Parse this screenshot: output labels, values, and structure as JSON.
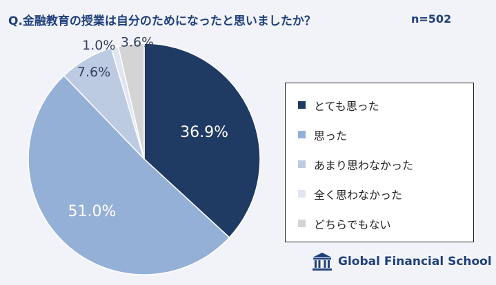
{
  "title": "Q.金融教育の授業は自分のためになったと思いましたか？",
  "sample_size": "n=502",
  "brand": "Global Financial School",
  "chart_data": {
    "type": "pie",
    "title": "Q.金融教育の授業は自分のためになったと思いましたか？",
    "categories": [
      "とても思った",
      "思った",
      "あまり思わなかった",
      "全く思わなかった",
      "どちらでもない"
    ],
    "values": [
      36.9,
      51.0,
      7.6,
      1.0,
      3.6
    ],
    "value_labels": [
      "36.9%",
      "51.0%",
      "7.6%",
      "1.0%",
      "3.6%"
    ],
    "colors": [
      "#1f3a63",
      "#95b0d6",
      "#bccbe2",
      "#e0e6f1",
      "#d4d4d4"
    ],
    "legend_position": "right"
  }
}
